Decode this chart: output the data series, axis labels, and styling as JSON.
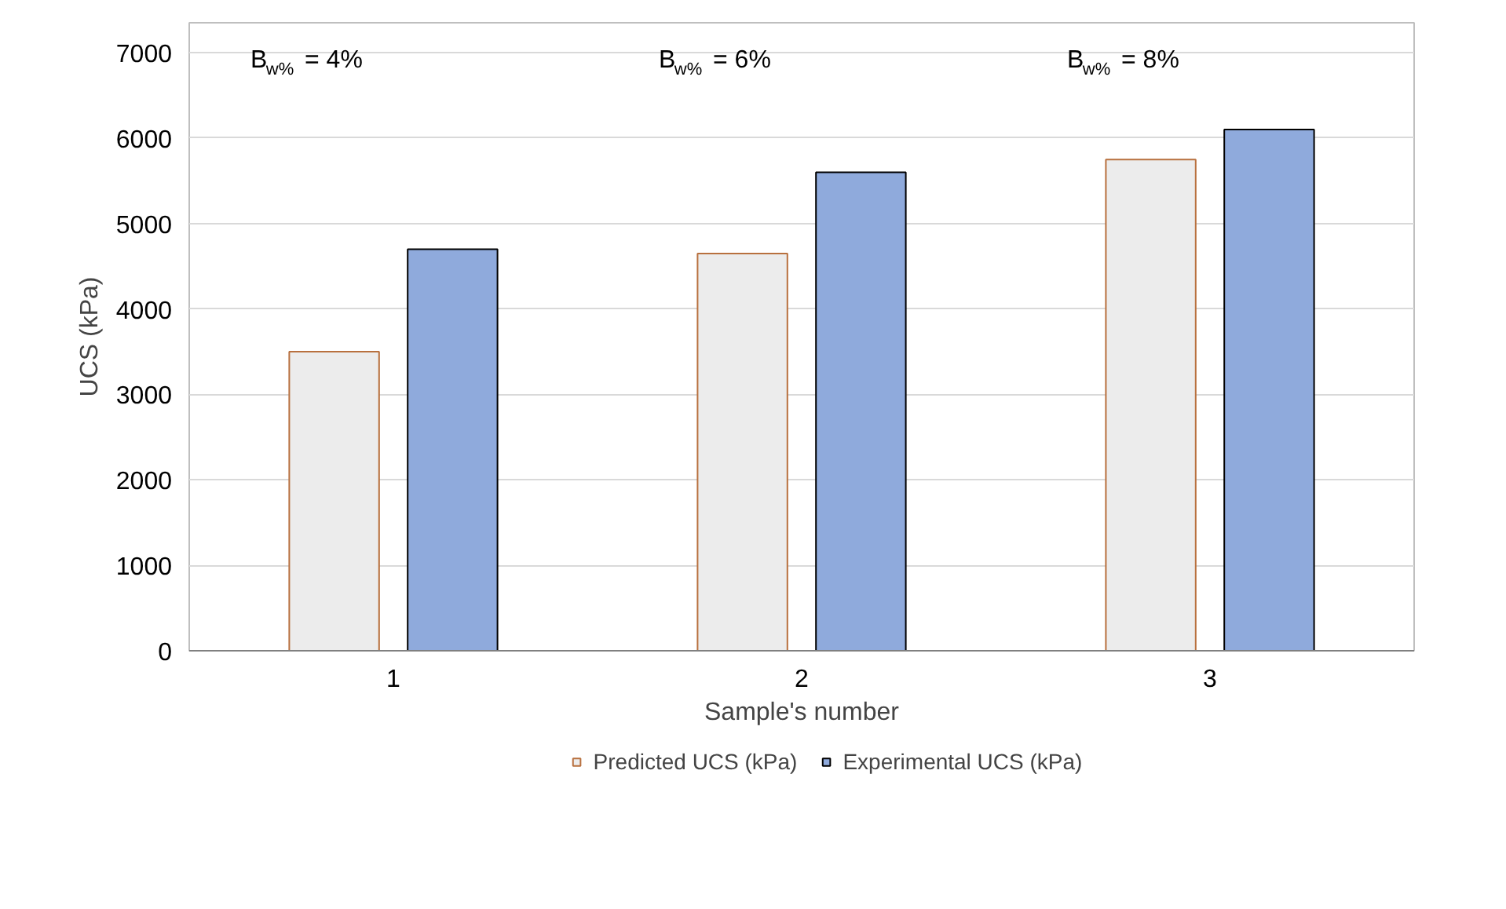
{
  "chart_data": {
    "type": "bar",
    "xlabel": "Sample's number",
    "ylabel": "UCS (kPa)",
    "categories": [
      "1",
      "2",
      "3"
    ],
    "series": [
      {
        "name": "Predicted UCS (kPa)",
        "color": "#ececec",
        "values": [
          3500,
          4650,
          5750
        ]
      },
      {
        "name": "Experimental UCS (kPa)",
        "color": "#8faadc",
        "values": [
          4700,
          5600,
          6100
        ]
      }
    ],
    "ylim": [
      0,
      7350
    ],
    "yticks": [
      0,
      1000,
      2000,
      3000,
      4000,
      5000,
      6000,
      7000
    ],
    "grid": "y",
    "legend": "bottom",
    "annotations": [
      "B$_{w%}$ = 4%",
      "B$_{w%}$ = 6%",
      "B$_{w%}$ = 8%"
    ]
  }
}
